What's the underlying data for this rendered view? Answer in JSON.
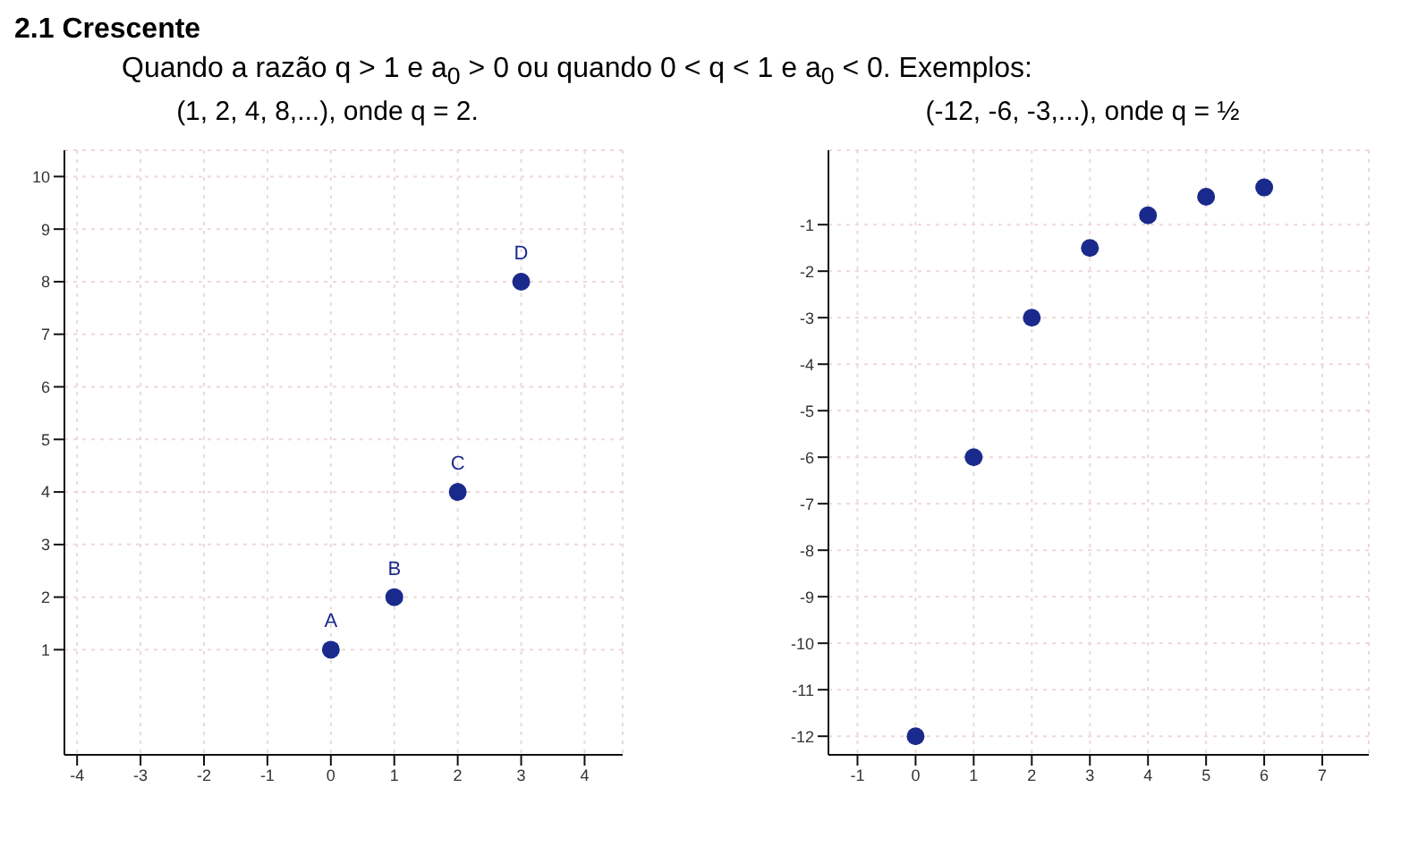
{
  "chart_data": [
    {
      "type": "scatter",
      "title": "2.1 Crescente",
      "subtitle": "Quando a razão q > 1 e a$_{0}$ > 0 ou quando 0 < q < 1 e a$_{0}$ < 0. Exemplos:",
      "annotations": [
        "(1, 2, 4, 8,...), onde q = 2."
      ],
      "x": [
        0,
        1,
        2,
        3
      ],
      "values": [
        1,
        2,
        4,
        8
      ],
      "value_labels": [
        "A",
        "B",
        "C",
        "D"
      ],
      "color": "#1a2a8c",
      "marker": "circle",
      "xlim": [
        -4.2,
        4.6
      ],
      "xticks": [
        -4,
        -3,
        -2,
        -1,
        0,
        1,
        2,
        3,
        4
      ],
      "ylim": [
        -1,
        10.5
      ],
      "yticks": [
        1,
        2,
        3,
        4,
        5,
        6,
        7,
        8,
        9,
        10
      ],
      "grid": true
    },
    {
      "type": "scatter",
      "title": "(-12, -6, -3,...), onde q = ½",
      "x": [
        0,
        1,
        2,
        3,
        4,
        5,
        6
      ],
      "values": [
        -12,
        -6,
        -3,
        -1.5,
        -0.8,
        -0.4,
        -0.2
      ],
      "color": "#1a2a8c",
      "marker": "circle",
      "xlim": [
        -1.5,
        7.8
      ],
      "xticks": [
        -1,
        0,
        1,
        2,
        3,
        4,
        5,
        6,
        7
      ],
      "ylim": [
        -12.4,
        0.6
      ],
      "yticks": [
        -12,
        -11,
        -10,
        -9,
        -8,
        -7,
        -6,
        -5,
        -4,
        -3,
        -2,
        -1
      ],
      "grid": true
    }
  ]
}
